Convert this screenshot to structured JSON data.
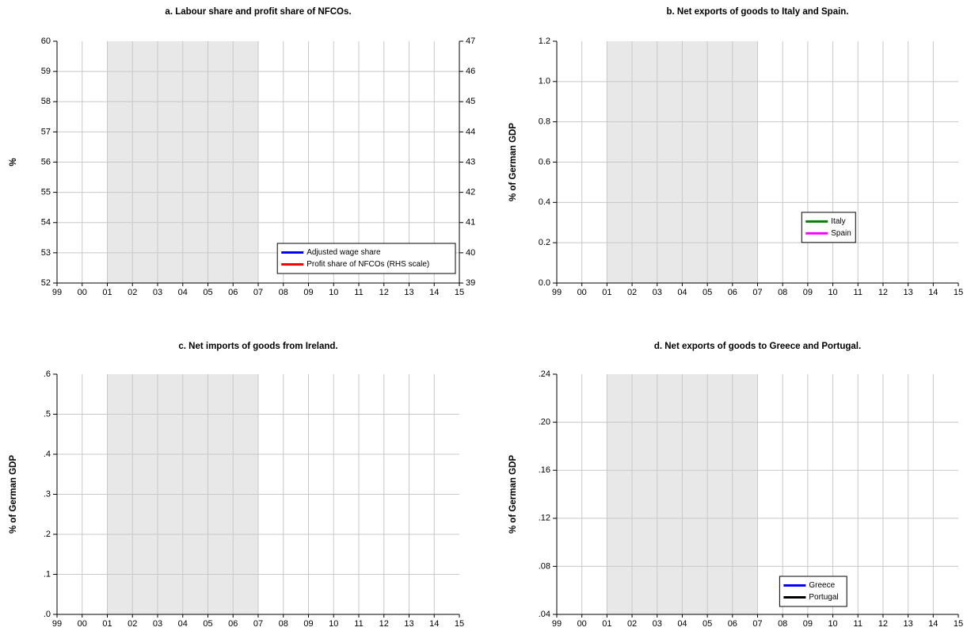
{
  "chart_data": [
    {
      "type": "line",
      "title": "a. Labour share and profit share of NFCOs.",
      "ylabel": "%",
      "categories": [
        "99",
        "00",
        "01",
        "02",
        "03",
        "04",
        "05",
        "06",
        "07",
        "08",
        "09",
        "10",
        "11",
        "12",
        "13",
        "14",
        "15"
      ],
      "ylim": [
        52,
        60
      ],
      "yticks": [
        52,
        53,
        54,
        55,
        56,
        57,
        58,
        59,
        60
      ],
      "y2lim": [
        39,
        47
      ],
      "y2ticks": [
        39,
        40,
        41,
        42,
        43,
        44,
        45,
        46,
        47
      ],
      "shade": [
        "01",
        "07"
      ],
      "grid": true,
      "legend": "lower right",
      "series": [
        {
          "name": "Adjusted wage share",
          "color": "#0000ff"
        },
        {
          "name": "Profit share of NFCOs (RHS scale)",
          "color": "#ff0000",
          "axis": "y2"
        }
      ]
    },
    {
      "type": "line",
      "title": "b. Net exports of goods to Italy and Spain.",
      "ylabel": "% of German GDP",
      "categories": [
        "99",
        "00",
        "01",
        "02",
        "03",
        "04",
        "05",
        "06",
        "07",
        "08",
        "09",
        "10",
        "11",
        "12",
        "13",
        "14",
        "15"
      ],
      "ylim": [
        0,
        1.2
      ],
      "yticks": [
        {
          "value": 0,
          "label": "0.0"
        },
        0.2,
        0.4,
        0.6,
        0.8,
        {
          "value": 1,
          "label": "1.0"
        },
        1.2
      ],
      "shade": [
        "01",
        "07"
      ],
      "grid": true,
      "legend": "center right",
      "series": [
        {
          "name": "Italy",
          "color": "#008000"
        },
        {
          "name": "Spain",
          "color": "#ff00ff"
        }
      ]
    },
    {
      "type": "line",
      "title": "c. Net imports of goods from Ireland.",
      "ylabel": "% of German GDP",
      "categories": [
        "99",
        "00",
        "01",
        "02",
        "03",
        "04",
        "05",
        "06",
        "07",
        "08",
        "09",
        "10",
        "11",
        "12",
        "13",
        "14",
        "15"
      ],
      "ylim": [
        0,
        0.6
      ],
      "yticks": [
        {
          "value": 0,
          "label": ".0"
        },
        {
          "value": 0.1,
          "label": ".1"
        },
        {
          "value": 0.2,
          "label": ".2"
        },
        {
          "value": 0.3,
          "label": ".3"
        },
        {
          "value": 0.4,
          "label": ".4"
        },
        {
          "value": 0.5,
          "label": ".5"
        },
        {
          "value": 0.6,
          "label": ".6"
        }
      ],
      "shade": [
        "01",
        "07"
      ],
      "grid": true
    },
    {
      "type": "line",
      "title": "d. Net exports of goods to Greece and Portugal.",
      "ylabel": "% of German GDP",
      "categories": [
        "99",
        "00",
        "01",
        "02",
        "03",
        "04",
        "05",
        "06",
        "07",
        "08",
        "09",
        "10",
        "11",
        "12",
        "13",
        "14",
        "15"
      ],
      "ylim": [
        0.04,
        0.24
      ],
      "yticks": [
        {
          "value": 0.04,
          "label": ".04"
        },
        {
          "value": 0.08,
          "label": ".08"
        },
        {
          "value": 0.12,
          "label": ".12"
        },
        {
          "value": 0.16,
          "label": ".16"
        },
        {
          "value": 0.2,
          "label": ".20"
        },
        {
          "value": 0.24,
          "label": ".24"
        }
      ],
      "shade": [
        "01",
        "07"
      ],
      "grid": true,
      "legend": "lower center right",
      "series": [
        {
          "name": "Greece",
          "color": "#0000ff"
        },
        {
          "name": "Portugal",
          "color": "#000000"
        }
      ]
    }
  ]
}
